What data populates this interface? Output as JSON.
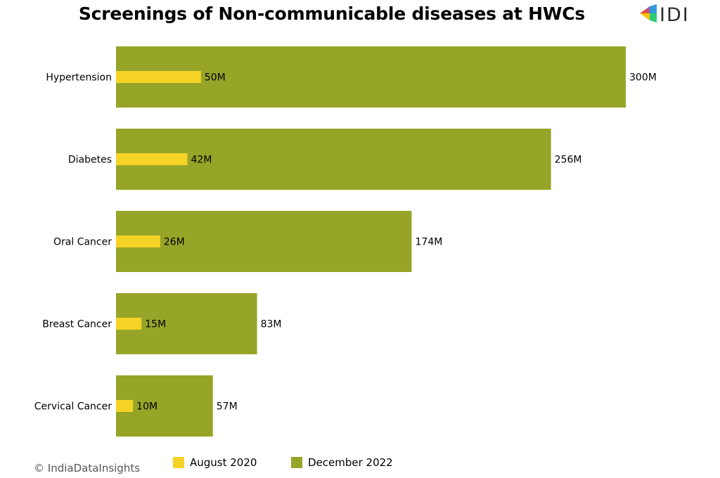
{
  "chart_data": {
    "type": "bar",
    "orientation": "horizontal",
    "title": "Screenings of Non-communicable diseases at HWCs",
    "categories": [
      "Hypertension",
      "Diabetes",
      "Oral Cancer",
      "Breast Cancer",
      "Cervical Cancer"
    ],
    "series": [
      {
        "name": "December 2022",
        "values": [
          300,
          256,
          174,
          83,
          57
        ],
        "labels": [
          "300M",
          "256M",
          "174M",
          "83M",
          "57M"
        ],
        "color": "#96a527"
      },
      {
        "name": "August 2020",
        "values": [
          50,
          42,
          26,
          15,
          10
        ],
        "labels": [
          "50M",
          "42M",
          "26M",
          "15M",
          "10M"
        ],
        "color": "#f5d327"
      }
    ],
    "xlim": [
      0,
      300
    ],
    "unit": "M",
    "grid": false,
    "legend_position": "bottom"
  },
  "legend": [
    {
      "label": "August 2020",
      "color": "#f5d327"
    },
    {
      "label": "December 2022",
      "color": "#96a527"
    }
  ],
  "copyright": "© IndiaDataInsights",
  "logo": {
    "text": "IDI",
    "colors": [
      "#e74c3c",
      "#f1c40f",
      "#3498db",
      "#2ecc71",
      "#9b59b6"
    ]
  }
}
